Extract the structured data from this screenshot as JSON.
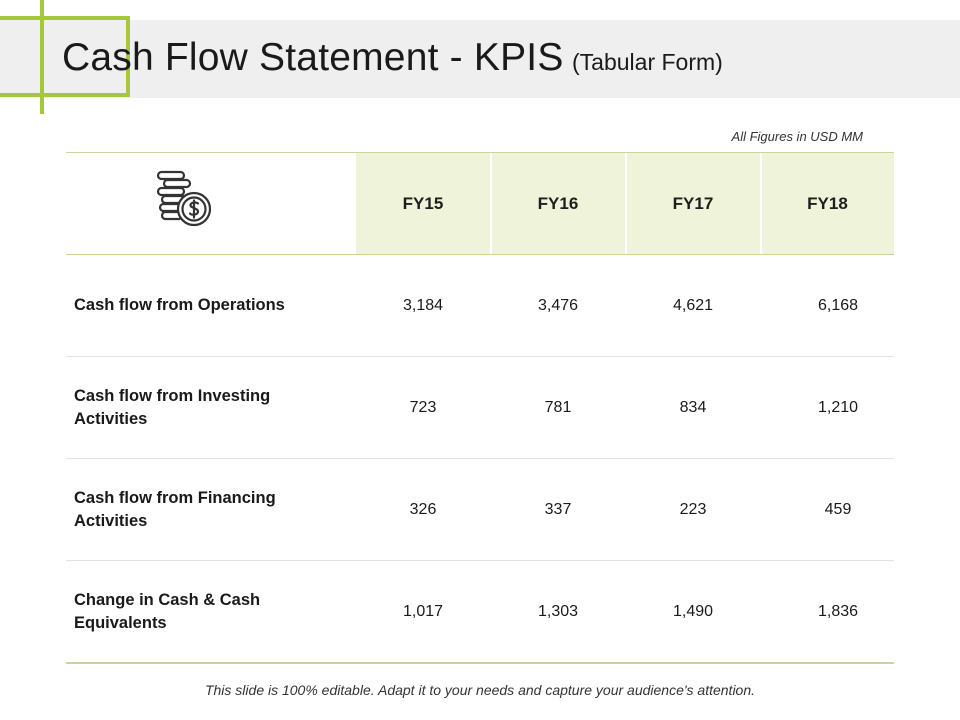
{
  "title": {
    "main": "Cash Flow Statement - KPIS",
    "sub": "(Tabular Form)"
  },
  "units_note": "All Figures in USD MM",
  "header_icon": "coin-stack-dollar-icon",
  "columns": [
    "FY15",
    "FY16",
    "FY17",
    "FY18"
  ],
  "rows": [
    {
      "label": "Cash flow from Operations",
      "values": [
        "3,184",
        "3,476",
        "4,621",
        "6,168"
      ]
    },
    {
      "label": "Cash flow from Investing Activities",
      "values": [
        "723",
        "781",
        "834",
        "1,210"
      ]
    },
    {
      "label": "Cash flow from Financing Activities",
      "values": [
        "326",
        "337",
        "223",
        "459"
      ]
    },
    {
      "label": "Change in Cash & Cash Equivalents",
      "values": [
        "1,017",
        "1,303",
        "1,490",
        "1,836"
      ]
    }
  ],
  "footer": "This slide is 100% editable. Adapt it to your needs and capture your audience's attention.",
  "colors": {
    "accent": "#a7c73a",
    "header_fill": "#eef3d9",
    "title_band": "#efefef"
  }
}
